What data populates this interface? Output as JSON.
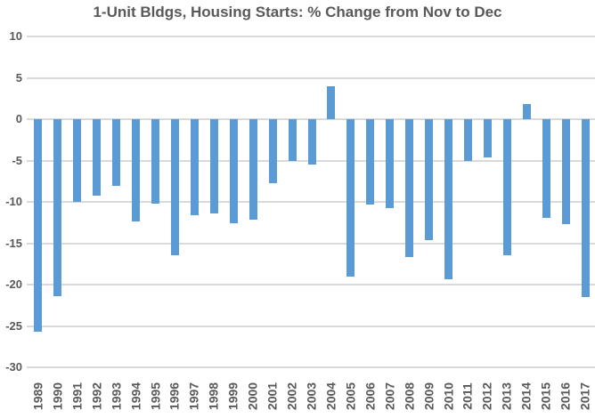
{
  "colors": {
    "bar": "#5B9BD5",
    "gridline": "#D9D9D9",
    "text": "#595959",
    "background": "#FFFFFF"
  },
  "chart_data": {
    "type": "bar",
    "title": "1-Unit Bldgs, Housing Starts: % Change from Nov to Dec",
    "categories": [
      "1989",
      "1990",
      "1991",
      "1992",
      "1993",
      "1994",
      "1995",
      "1996",
      "1997",
      "1998",
      "1999",
      "2000",
      "2001",
      "2002",
      "2003",
      "2004",
      "2005",
      "2006",
      "2007",
      "2008",
      "2009",
      "2010",
      "2011",
      "2012",
      "2013",
      "2014",
      "2015",
      "2016",
      "2017"
    ],
    "values": [
      -25.7,
      -21.4,
      -10.0,
      -9.2,
      -8.1,
      -12.4,
      -10.2,
      -16.5,
      -11.6,
      -11.4,
      -12.6,
      -12.1,
      -7.7,
      -5.0,
      -5.5,
      4.0,
      -19.0,
      -10.3,
      -10.7,
      -16.7,
      -14.6,
      -19.4,
      -5.1,
      -4.6,
      -16.4,
      1.8,
      -11.9,
      -12.7,
      -21.5
    ],
    "xlabel": "",
    "ylabel": "",
    "ylim": [
      -30,
      10
    ],
    "y_ticks": [
      10,
      5,
      0,
      -5,
      -10,
      -15,
      -20,
      -25,
      -30
    ],
    "y_tick_labels": [
      "10",
      "5",
      "0",
      "-5",
      "-10",
      "-15",
      "-20",
      "-25",
      "-30"
    ],
    "grid": true,
    "legend": false,
    "bar_color": "#5B9BD5",
    "x_tick_rotation": 90
  }
}
